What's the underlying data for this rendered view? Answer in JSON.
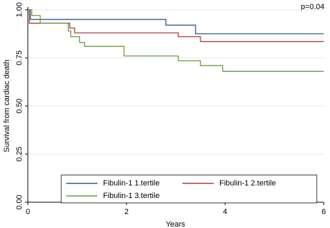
{
  "chart_data": {
    "type": "step",
    "annotation": "p=0.04",
    "x_label": "Years",
    "y_label": "Survival from cardiac death",
    "xlim": [
      0,
      6
    ],
    "xticks": [
      0,
      2,
      4,
      6
    ],
    "ylim": [
      0,
      1
    ],
    "yticks": [
      {
        "value": 0,
        "label": "0.00"
      },
      {
        "value": 0.25,
        "label": "0.25"
      },
      {
        "value": 0.5,
        "label": "0.50"
      },
      {
        "value": 0.75,
        "label": "0.75"
      },
      {
        "value": 1,
        "label": "1.00"
      }
    ],
    "grid": true,
    "legend": "bottom",
    "series": [
      {
        "name": "Fibulin-1 1.tertile",
        "color": "#2a5b8c",
        "x": [
          0,
          0.05,
          2.8,
          3.4,
          6
        ],
        "values": [
          1,
          0.95,
          0.92,
          0.875,
          0.875
        ]
      },
      {
        "name": "Fibulin-1 2.tertile",
        "color": "#b5373a",
        "x": [
          0,
          0.03,
          0.85,
          0.95,
          3.05,
          3.5,
          6
        ],
        "values": [
          1,
          0.93,
          0.905,
          0.88,
          0.86,
          0.835,
          0.835
        ]
      },
      {
        "name": "Fibulin-1 3.tertile",
        "color": "#6b9a3a",
        "x": [
          0,
          0.08,
          0.25,
          0.82,
          0.87,
          1.05,
          1.15,
          1.95,
          3.05,
          3.5,
          3.95,
          6
        ],
        "values": [
          1,
          0.97,
          0.93,
          0.89,
          0.86,
          0.83,
          0.81,
          0.76,
          0.735,
          0.71,
          0.68,
          0.68
        ]
      }
    ]
  }
}
